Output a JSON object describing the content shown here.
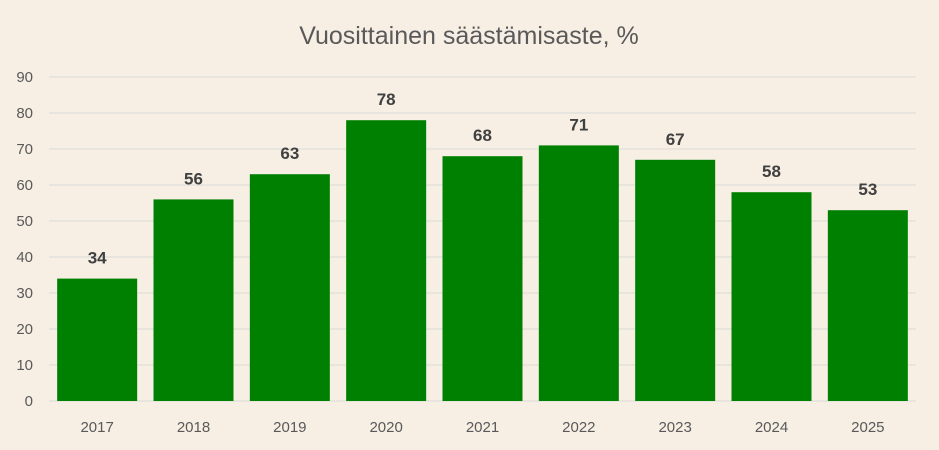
{
  "chart_data": {
    "type": "bar",
    "title": "Vuosittainen säästämisaste, %",
    "xlabel": "",
    "ylabel": "",
    "categories": [
      "2017",
      "2018",
      "2019",
      "2020",
      "2021",
      "2022",
      "2023",
      "2024",
      "2025"
    ],
    "values": [
      34,
      56,
      63,
      78,
      68,
      71,
      67,
      58,
      53
    ],
    "ylim": [
      0,
      90
    ],
    "yticks": [
      0,
      10,
      20,
      30,
      40,
      50,
      60,
      70,
      80,
      90
    ],
    "grid": true,
    "legend": "none",
    "colors": {
      "bar": "#008000",
      "background": "#f7efe4",
      "gridline": "#d9d9d9",
      "text": "#595959",
      "data_label": "#404040"
    }
  }
}
